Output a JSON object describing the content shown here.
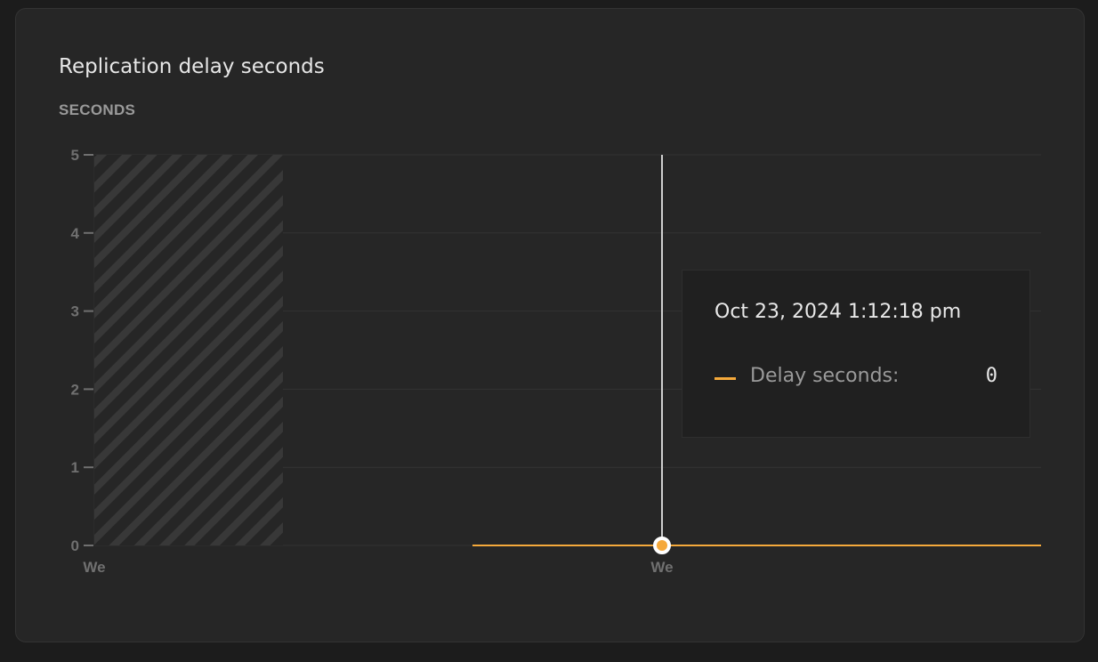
{
  "card": {
    "title": "Replication delay seconds",
    "y_unit_label": "SECONDS"
  },
  "chart_data": {
    "type": "line",
    "title": "Replication delay seconds",
    "ylabel": "SECONDS",
    "ylim": [
      0,
      5
    ],
    "y_ticks": [
      "0",
      "1",
      "2",
      "3",
      "4",
      "5"
    ],
    "x_ticks": [
      "We",
      "We"
    ],
    "grid": true,
    "no_data_region": "hatched at start of range",
    "series": [
      {
        "name": "Delay seconds",
        "color": "#f5a93b",
        "values": [
          0,
          0
        ]
      }
    ]
  },
  "tooltip": {
    "date": "Oct 23, 2024 1:12:18 pm",
    "label": "Delay seconds:",
    "value": "0",
    "color": "#f5a93b"
  }
}
